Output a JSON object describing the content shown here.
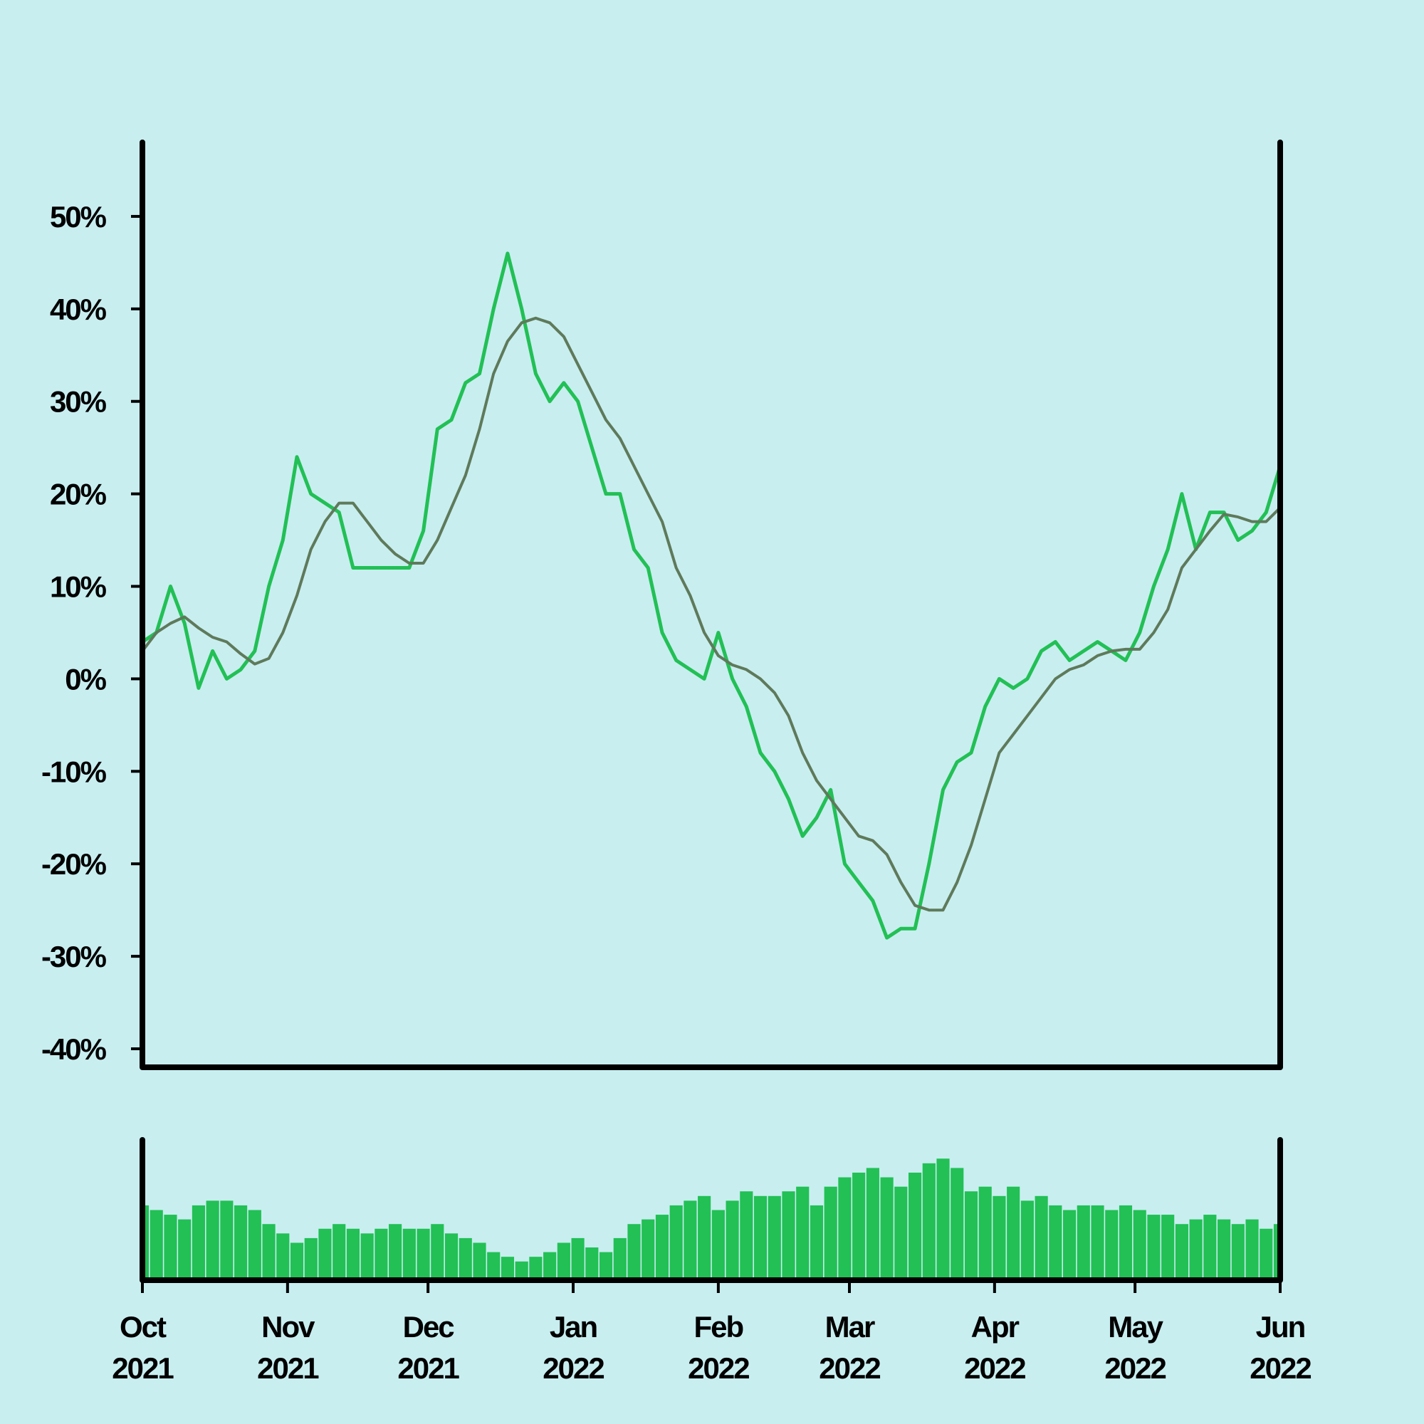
{
  "chart_data": [
    {
      "type": "line",
      "x": [
        0,
        3,
        6,
        9,
        12,
        15,
        18,
        21,
        24,
        27,
        30,
        33,
        36,
        39,
        42,
        45,
        48,
        51,
        54,
        57,
        60,
        63,
        66,
        69,
        72,
        75,
        78,
        81,
        84,
        87,
        90,
        93,
        96,
        99,
        102,
        105,
        108,
        111,
        114,
        117,
        120,
        123,
        126,
        129,
        132,
        135,
        138,
        141,
        144,
        147,
        150,
        153,
        156,
        159,
        162,
        165,
        168,
        171,
        174,
        177,
        180,
        183,
        186,
        189,
        192,
        195,
        198,
        201,
        204,
        207,
        210,
        213,
        216,
        219,
        222,
        225,
        228,
        231,
        234,
        237,
        240,
        243
      ],
      "series": [
        {
          "color": "#22c055",
          "values": [
            4,
            5,
            10,
            6,
            -1,
            3,
            0,
            1,
            3,
            10,
            15,
            24,
            20,
            19,
            18,
            12,
            12,
            12,
            12,
            12,
            16,
            27,
            28,
            32,
            33,
            40,
            46,
            40,
            33,
            30,
            32,
            30,
            25,
            20,
            20,
            14,
            12,
            5,
            2,
            1,
            0,
            5,
            0,
            -3,
            -8,
            -10,
            -13,
            -17,
            -15,
            -12,
            -20,
            -22,
            -24,
            -28,
            -27,
            -27,
            -20,
            -12,
            -9,
            -8,
            -3,
            0,
            -1,
            0,
            3,
            4,
            2,
            3,
            4,
            3,
            2,
            5,
            10,
            14,
            20,
            14,
            18,
            18,
            15,
            16,
            18,
            23
          ]
        },
        {
          "color": "#5e7a5a",
          "values": [
            3,
            5,
            6,
            6.7,
            5.5,
            4.5,
            4,
            2.7,
            1.6,
            2.2,
            5,
            9,
            14,
            17,
            19,
            19,
            17,
            15,
            13.5,
            12.5,
            12.5,
            15,
            18.5,
            22,
            27,
            33,
            36.5,
            38.5,
            39,
            38.5,
            37,
            34,
            31,
            28,
            26,
            23,
            20,
            17,
            12,
            9,
            5,
            2.5,
            1.5,
            1,
            0,
            -1.5,
            -4,
            -8,
            -11,
            -13,
            -15,
            -17,
            -17.5,
            -19,
            -22,
            -24.5,
            -25,
            -25,
            -22,
            -18,
            -13,
            -8,
            -6,
            -4,
            -2,
            0,
            1,
            1.5,
            2.5,
            3,
            3.2,
            3.2,
            5,
            7.5,
            12,
            14,
            16,
            17.8,
            17.5,
            17,
            17,
            18.5
          ]
        }
      ],
      "xlim": [
        0,
        243
      ],
      "ylim": [
        -42,
        58
      ],
      "yticks": [
        {
          "value": -40,
          "label": "-40%"
        },
        {
          "value": -30,
          "label": "-30%"
        },
        {
          "value": -20,
          "label": "-20%"
        },
        {
          "value": -10,
          "label": "-10%"
        },
        {
          "value": 0,
          "label": "0%"
        },
        {
          "value": 10,
          "label": "10%"
        },
        {
          "value": 20,
          "label": "20%"
        },
        {
          "value": 30,
          "label": "30%"
        },
        {
          "value": 40,
          "label": "40%"
        },
        {
          "value": 50,
          "label": "50%"
        }
      ]
    },
    {
      "type": "bar",
      "x": [
        0,
        3,
        6,
        9,
        12,
        15,
        18,
        21,
        24,
        27,
        30,
        33,
        36,
        39,
        42,
        45,
        48,
        51,
        54,
        57,
        60,
        63,
        66,
        69,
        72,
        75,
        78,
        81,
        84,
        87,
        90,
        93,
        96,
        99,
        102,
        105,
        108,
        111,
        114,
        117,
        120,
        123,
        126,
        129,
        132,
        135,
        138,
        141,
        144,
        147,
        150,
        153,
        156,
        159,
        162,
        165,
        168,
        171,
        174,
        177,
        180,
        183,
        186,
        189,
        192,
        195,
        198,
        201,
        204,
        207,
        210,
        213,
        216,
        219,
        222,
        225,
        228,
        231,
        234,
        237,
        240,
        243
      ],
      "values": [
        80,
        75,
        70,
        65,
        80,
        85,
        85,
        80,
        75,
        60,
        50,
        40,
        45,
        55,
        60,
        55,
        50,
        55,
        60,
        55,
        55,
        60,
        50,
        45,
        40,
        30,
        25,
        20,
        25,
        30,
        40,
        45,
        35,
        30,
        45,
        60,
        65,
        70,
        80,
        85,
        90,
        75,
        85,
        95,
        90,
        90,
        95,
        100,
        80,
        100,
        110,
        115,
        120,
        110,
        100,
        115,
        125,
        130,
        120,
        95,
        100,
        90,
        100,
        85,
        90,
        80,
        75,
        80,
        80,
        75,
        80,
        75,
        70,
        70,
        60,
        65,
        70,
        65,
        60,
        65,
        55,
        60
      ],
      "color": "#22c055",
      "xlim": [
        0,
        243
      ],
      "ylim": [
        0,
        150
      ],
      "xticks": [
        {
          "value": 0,
          "label": "Oct 2021"
        },
        {
          "value": 31,
          "label": "Nov 2021"
        },
        {
          "value": 61,
          "label": "Dec 2021"
        },
        {
          "value": 92,
          "label": "Jan 2022"
        },
        {
          "value": 123,
          "label": "Feb 2022"
        },
        {
          "value": 151,
          "label": "Mar 2022"
        },
        {
          "value": 182,
          "label": "Apr 2022"
        },
        {
          "value": 212,
          "label": "May 2022"
        },
        {
          "value": 243,
          "label": "Jun 2022"
        }
      ]
    }
  ]
}
